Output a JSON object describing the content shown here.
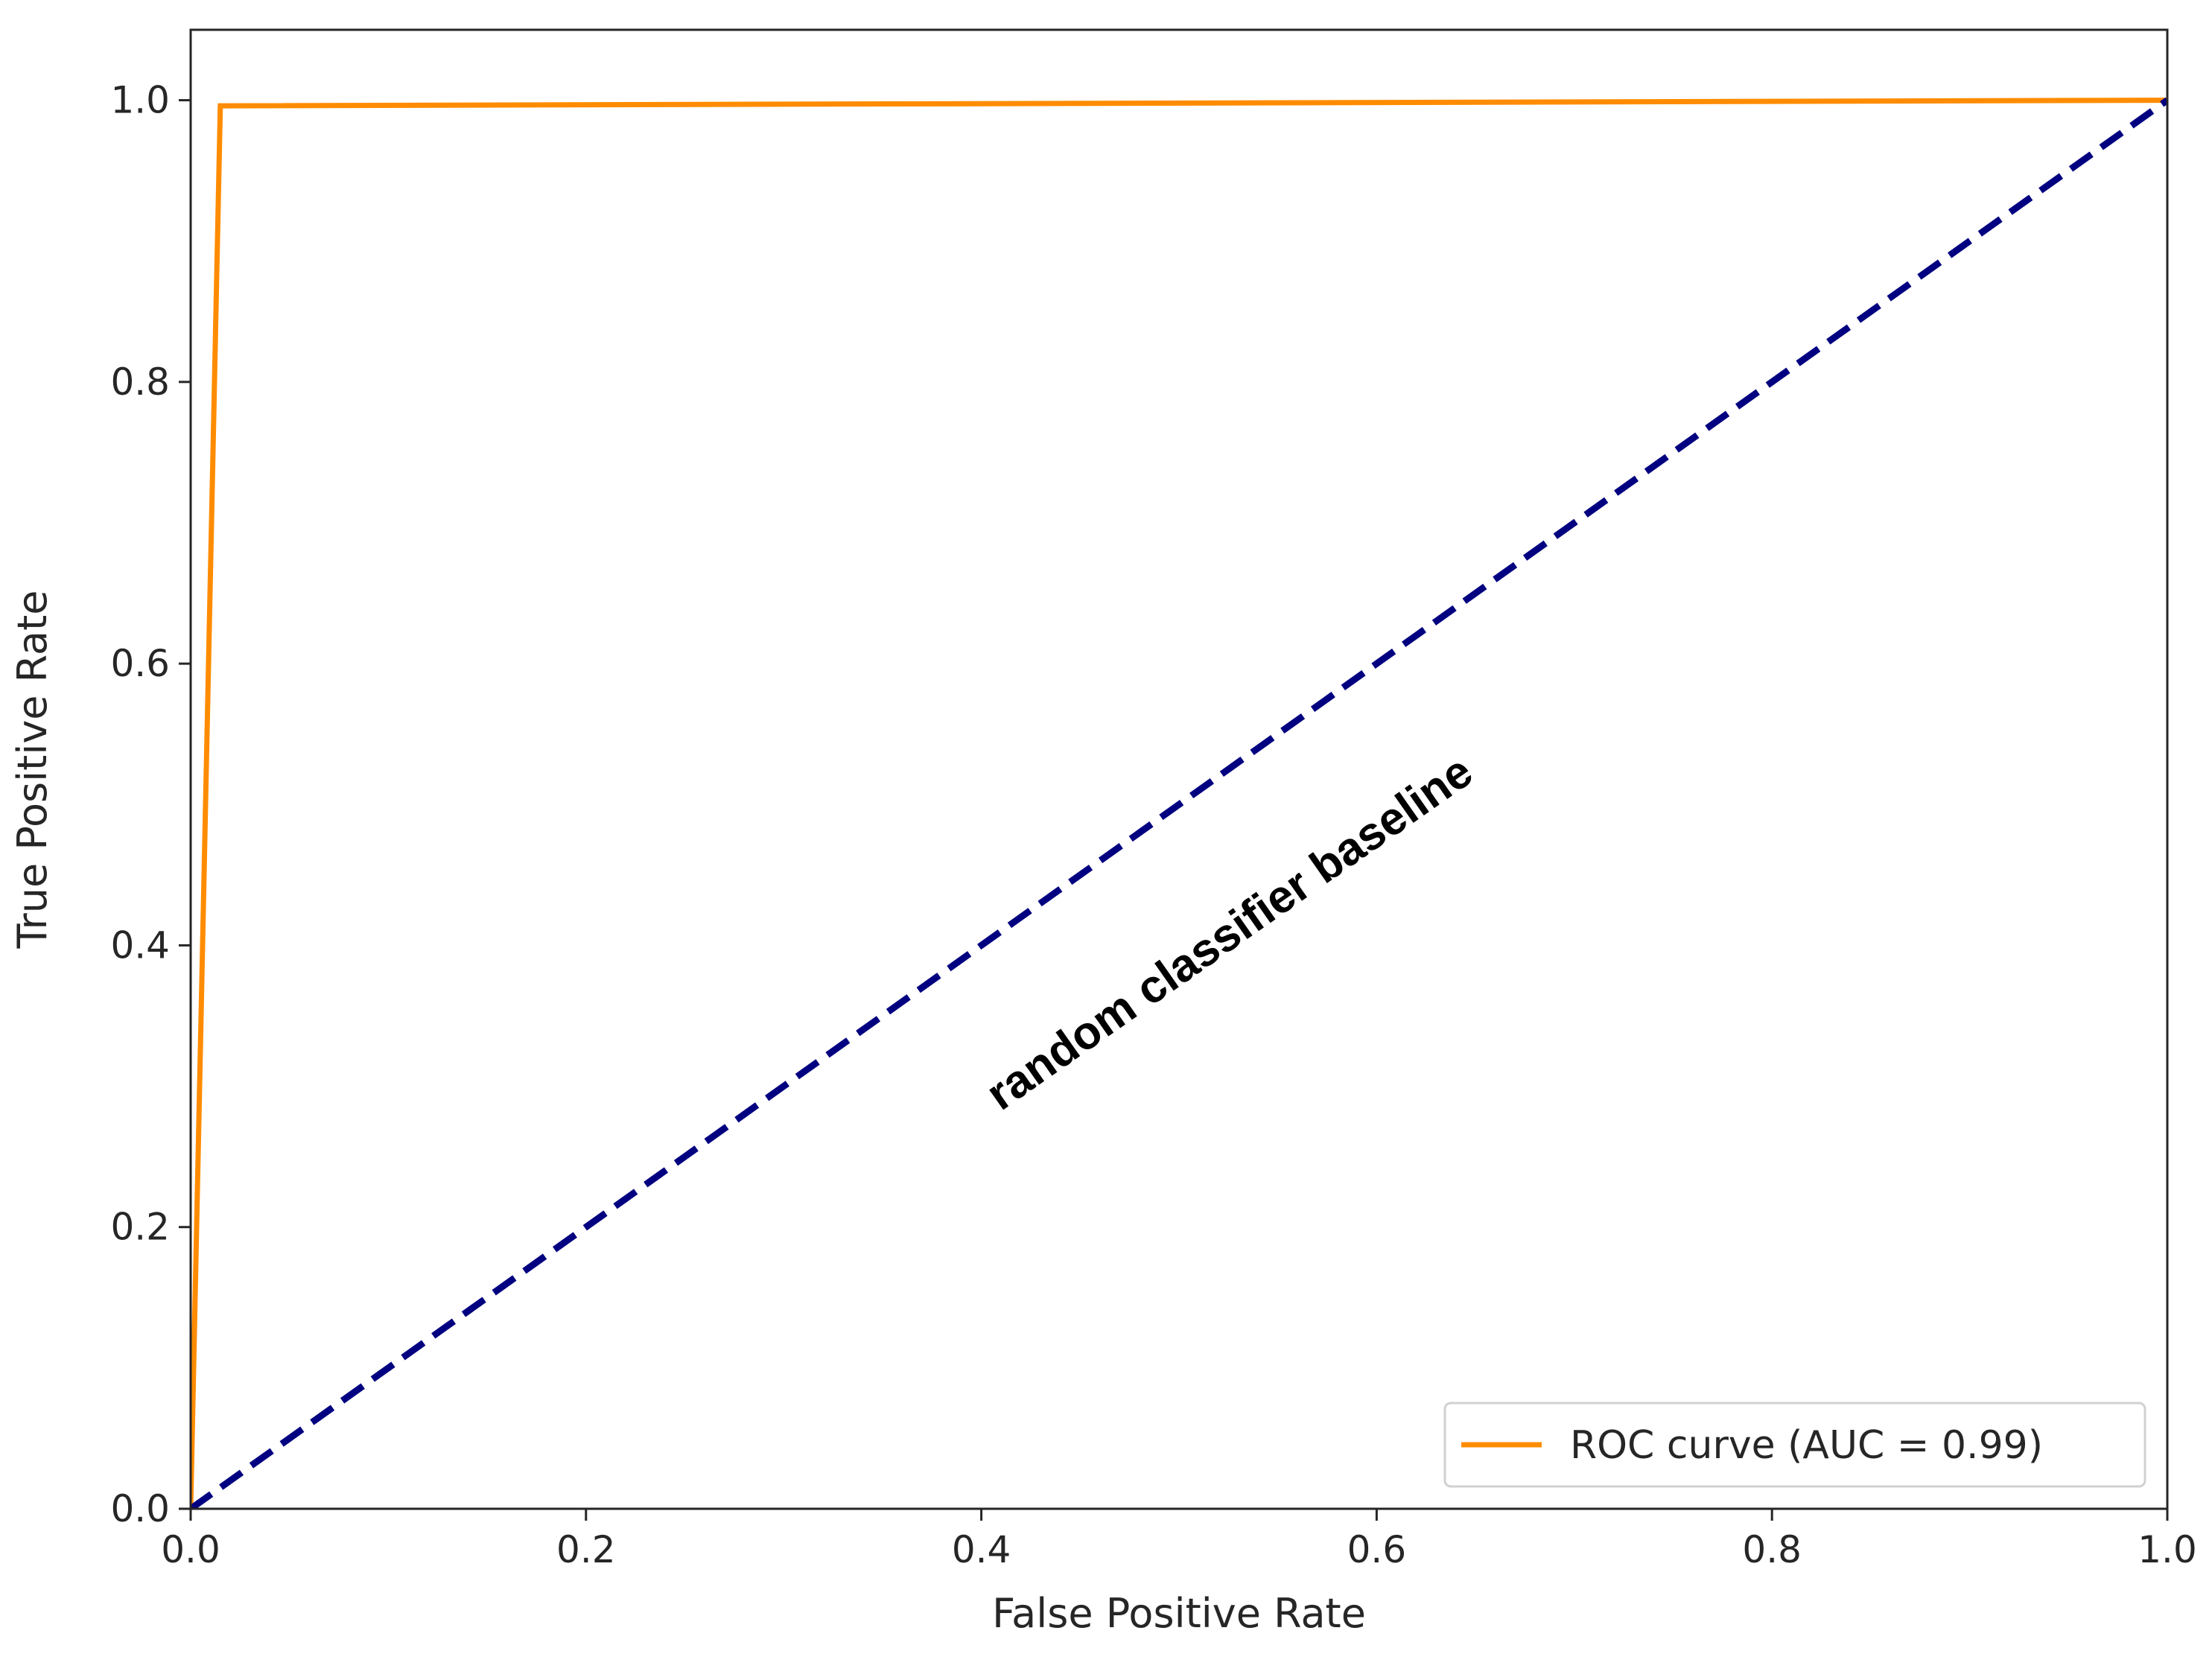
{
  "chart_data": {
    "type": "line",
    "xlabel": "False Positive Rate",
    "ylabel": "True Positive Rate",
    "xlim": [
      0.0,
      1.0
    ],
    "ylim": [
      0.0,
      1.05
    ],
    "x_ticks": [
      0.0,
      0.2,
      0.4,
      0.6,
      0.8,
      1.0
    ],
    "y_ticks": [
      0.0,
      0.2,
      0.4,
      0.6,
      0.8,
      1.0
    ],
    "x_tick_labels": [
      "0.0",
      "0.2",
      "0.4",
      "0.6",
      "0.8",
      "1.0"
    ],
    "y_tick_labels": [
      "0.0",
      "0.2",
      "0.4",
      "0.6",
      "0.8",
      "1.0"
    ],
    "grid": false,
    "series": [
      {
        "name": "ROC curve (AUC = 0.99)",
        "color": "#ff8c00",
        "style": "solid",
        "x": [
          0.0,
          0.015,
          1.0
        ],
        "y": [
          0.0,
          0.996,
          1.0
        ]
      },
      {
        "color": "#000080",
        "style": "dashed",
        "x": [
          0.0,
          1.0
        ],
        "y": [
          0.0,
          1.0
        ]
      }
    ],
    "legend": {
      "placement": "lower-right",
      "entries": [
        "ROC curve (AUC = 0.99)"
      ]
    },
    "annotations": [
      {
        "text": "random classifier baseline",
        "x": 0.53,
        "y": 0.4,
        "rotation_deg": -35
      }
    ]
  }
}
